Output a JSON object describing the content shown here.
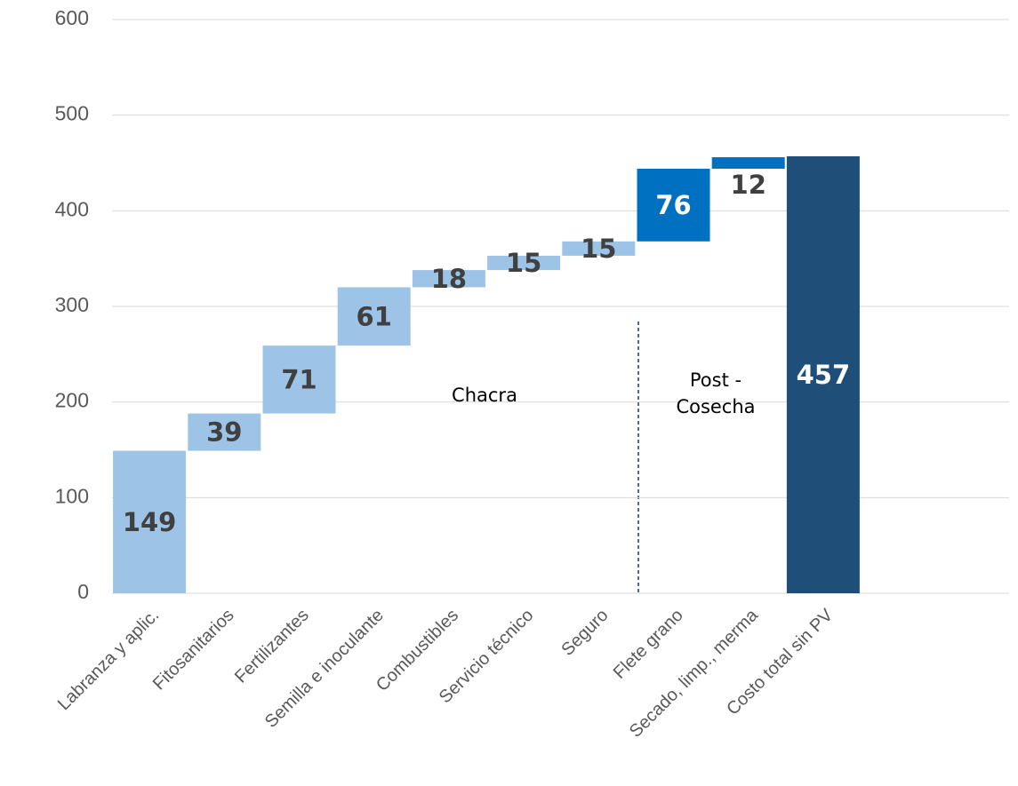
{
  "chart_data": {
    "type": "waterfall",
    "categories": [
      "Labranza y aplic.",
      "Fitosanitarios",
      "Fertilizantes",
      "Semilla e inoculante",
      "Combustibles",
      "Servicio técnico",
      "Seguro",
      "Flete grano",
      "Secado, limp., merma",
      "Costo total sin PV"
    ],
    "values": [
      149,
      39,
      71,
      61,
      18,
      15,
      15,
      76,
      12,
      457
    ],
    "measures": [
      "relative",
      "relative",
      "relative",
      "relative",
      "relative",
      "relative",
      "relative",
      "relative",
      "relative",
      "total"
    ],
    "colors": [
      "#9dc3e6",
      "#9dc3e6",
      "#9dc3e6",
      "#9dc3e6",
      "#9dc3e6",
      "#9dc3e6",
      "#9dc3e6",
      "#0070c0",
      "#0070c0",
      "#1f4e79"
    ],
    "ylim": [
      0,
      600
    ],
    "yticks": [
      0,
      100,
      200,
      300,
      400,
      500,
      600
    ],
    "grid": true,
    "annotations": [
      "Chacra",
      "Post - Cosecha"
    ]
  }
}
